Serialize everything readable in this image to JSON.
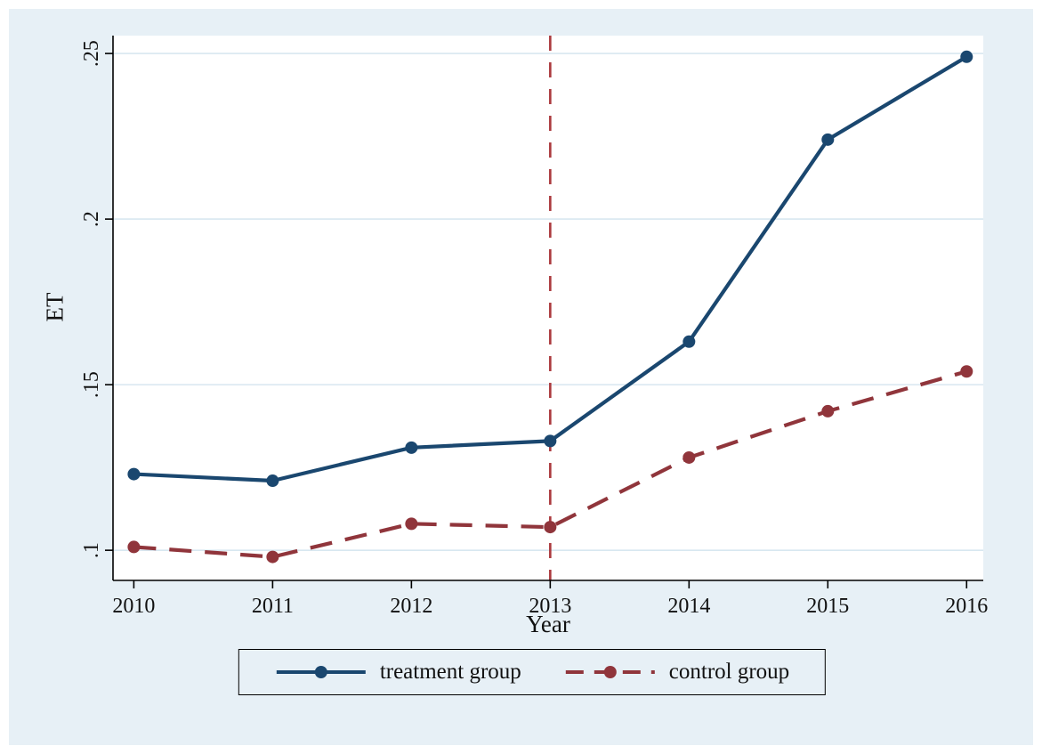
{
  "figure": {
    "background": "#e7f0f6",
    "plot_background": "#ffffff",
    "grid_color": "#d8e7f0",
    "axis_color": "#000000"
  },
  "chart_data": {
    "type": "line",
    "title": "",
    "xlabel": "Year",
    "ylabel": "ET",
    "x": [
      2010,
      2011,
      2012,
      2013,
      2014,
      2015,
      2016
    ],
    "x_tick_labels": [
      "2010",
      "2011",
      "2012",
      "2013",
      "2014",
      "2015",
      "2016"
    ],
    "y_ticks": [
      0.1,
      0.15,
      0.2,
      0.25
    ],
    "y_tick_labels": [
      ".1",
      ".15",
      ".2",
      ".25"
    ],
    "xlim": [
      2009.85,
      2016.12
    ],
    "ylim": [
      0.0909,
      0.2554
    ],
    "grid": "horizontal",
    "legend_position": "bottom",
    "series": [
      {
        "name": "treatment group",
        "color": "#1a476f",
        "style": "solid",
        "marker": "circle",
        "values": [
          0.123,
          0.121,
          0.131,
          0.133,
          0.163,
          0.224,
          0.249
        ]
      },
      {
        "name": "control group",
        "color": "#90353b",
        "style": "dashed",
        "marker": "circle",
        "values": [
          0.101,
          0.098,
          0.108,
          0.107,
          0.128,
          0.142,
          0.154
        ]
      }
    ],
    "vline": {
      "x": 2013,
      "color": "#ab3a3e",
      "style": "dashed"
    }
  }
}
